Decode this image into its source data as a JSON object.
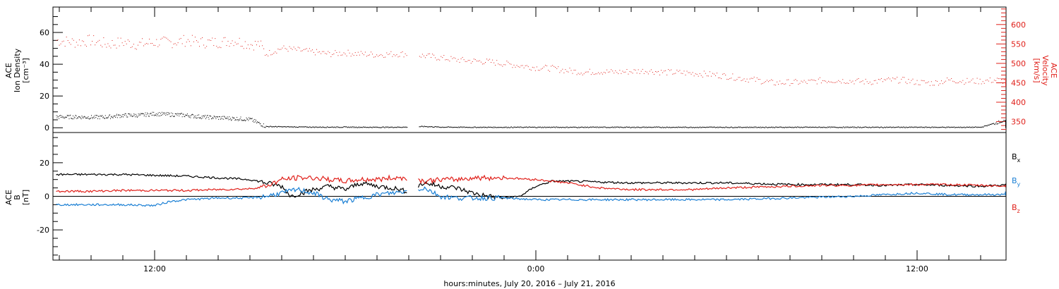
{
  "chart_data": [
    {
      "type": "scatter",
      "panel": "top",
      "left_axis": {
        "label": [
          "ACE",
          "Ion Density",
          "[cm⁻³]"
        ],
        "ylim": [
          -3,
          76
        ],
        "ticks": [
          0,
          20,
          40,
          60
        ],
        "color": "#000000"
      },
      "right_axis": {
        "label": [
          "ACE",
          "Velocity",
          "[km/s]"
        ],
        "ylim": [
          322,
          645
        ],
        "ticks": [
          350,
          400,
          450,
          500,
          550,
          600
        ],
        "color": "#e0201a"
      },
      "xlim": [
        -3.2,
        26.8
      ],
      "x_unit": "hours from July 20, 2016 00:00 UT (12:00 = July 20 noon)",
      "series": [
        {
          "color": "#e0201a",
          "axis": "right",
          "points": [
            [
              -3.1,
              560
            ],
            [
              -2.5,
              555
            ],
            [
              -2,
              560
            ],
            [
              -1.5,
              550
            ],
            [
              -1,
              555
            ],
            [
              -0.5,
              550
            ],
            [
              0,
              555
            ],
            [
              0.5,
              555
            ],
            [
              1,
              560
            ],
            [
              1.5,
              555
            ],
            [
              2,
              555
            ],
            [
              2.5,
              560
            ],
            [
              3,
              550
            ],
            [
              3.3,
              550
            ],
            [
              3.5,
              525
            ],
            [
              4,
              540
            ],
            [
              4.5,
              535
            ],
            [
              5,
              530
            ],
            [
              5.5,
              525
            ],
            [
              6,
              528
            ],
            [
              6.5,
              525
            ],
            [
              7,
              523
            ],
            [
              7.5,
              525
            ],
            [
              7.9,
              525
            ],
            [
              8.5,
              520
            ],
            [
              9,
              515
            ],
            [
              9.5,
              510
            ],
            [
              10,
              507
            ],
            [
              10.5,
              505
            ],
            [
              11,
              500
            ],
            [
              11.5,
              495
            ],
            [
              12,
              490
            ],
            [
              12.5,
              488
            ],
            [
              13,
              482
            ],
            [
              13.5,
              478
            ],
            [
              14,
              480
            ],
            [
              14.5,
              478
            ],
            [
              15,
              480
            ],
            [
              15.5,
              482
            ],
            [
              16,
              478
            ],
            [
              16.5,
              477
            ],
            [
              17,
              475
            ],
            [
              17.5,
              472
            ],
            [
              18,
              468
            ],
            [
              18.5,
              462
            ],
            [
              19,
              457
            ],
            [
              19.5,
              450
            ],
            [
              20,
              452
            ],
            [
              20.5,
              452
            ],
            [
              21,
              457
            ],
            [
              21.5,
              457
            ],
            [
              22,
              455
            ],
            [
              22.5,
              453
            ],
            [
              23,
              457
            ],
            [
              23.5,
              458
            ],
            [
              24,
              452
            ],
            [
              24.5,
              450
            ],
            [
              25,
              458
            ],
            [
              25.5,
              455
            ],
            [
              26,
              455
            ],
            [
              26.5,
              458
            ],
            [
              27,
              452
            ],
            [
              27.5,
              455
            ],
            [
              27.9,
              452
            ],
            [
              28.1,
              448
            ]
          ]
        },
        {
          "color": "#000000",
          "axis": "left",
          "points": [
            [
              -3.1,
              7
            ],
            [
              -2.5,
              7
            ],
            [
              -2,
              6.8
            ],
            [
              -1.5,
              7
            ],
            [
              -1,
              8
            ],
            [
              -0.5,
              8
            ],
            [
              0,
              9
            ],
            [
              0.5,
              8.5
            ],
            [
              1,
              8
            ],
            [
              1.5,
              7
            ],
            [
              2,
              6.5
            ],
            [
              2.5,
              6
            ],
            [
              3,
              5.5
            ],
            [
              3.5,
              1
            ],
            [
              4,
              0.8
            ],
            [
              5,
              0.6
            ],
            [
              6,
              0.6
            ],
            [
              7,
              0.5
            ],
            [
              7.9,
              0.6
            ],
            [
              8.5,
              1
            ],
            [
              9,
              0.6
            ],
            [
              10,
              0.5
            ],
            [
              12,
              0.5
            ],
            [
              14,
              0.5
            ],
            [
              16,
              0.5
            ],
            [
              18,
              0.5
            ],
            [
              20,
              0.5
            ],
            [
              22,
              0.5
            ],
            [
              24,
              0.5
            ],
            [
              25,
              0.5
            ],
            [
              26,
              0.5
            ],
            [
              26.6,
              4
            ],
            [
              27,
              4
            ],
            [
              27.5,
              3
            ],
            [
              28,
              0.6
            ],
            [
              28.1,
              0.5
            ]
          ]
        }
      ]
    },
    {
      "type": "line",
      "panel": "bottom",
      "left_axis": {
        "label": [
          "ACE",
          "B",
          "[nT]"
        ],
        "ylim": [
          -38,
          38
        ],
        "ticks": [
          -20,
          0,
          20
        ],
        "color": "#000000"
      },
      "xlim": [
        -3.2,
        26.8
      ],
      "series": [
        {
          "name": "Bx",
          "color": "#000000",
          "points": [
            [
              -3.1,
              13
            ],
            [
              -2,
              13
            ],
            [
              -1,
              13
            ],
            [
              0,
              12.5
            ],
            [
              1,
              12
            ],
            [
              2,
              11
            ],
            [
              3,
              10
            ],
            [
              3.5,
              8
            ],
            [
              4,
              6
            ],
            [
              4.3,
              0
            ],
            [
              4.6,
              2
            ],
            [
              5,
              4
            ],
            [
              5.5,
              6
            ],
            [
              6,
              4
            ],
            [
              6.5,
              8
            ],
            [
              7,
              6
            ],
            [
              7.5,
              5
            ],
            [
              7.9,
              3
            ],
            [
              8.5,
              8
            ],
            [
              9,
              6
            ],
            [
              9.5,
              5
            ],
            [
              10,
              2
            ],
            [
              10.5,
              0
            ],
            [
              11,
              -1
            ],
            [
              11.5,
              0
            ],
            [
              12,
              6
            ],
            [
              12.5,
              9
            ],
            [
              13,
              9
            ],
            [
              14,
              8.5
            ],
            [
              15,
              8
            ],
            [
              16,
              8
            ],
            [
              17,
              8
            ],
            [
              18,
              8
            ],
            [
              19,
              7.5
            ],
            [
              20,
              7
            ],
            [
              21,
              7
            ],
            [
              22,
              7
            ],
            [
              23,
              6.5
            ],
            [
              24,
              7
            ],
            [
              25,
              6.5
            ],
            [
              26,
              6
            ],
            [
              27,
              7
            ],
            [
              28,
              6
            ],
            [
              28.1,
              6
            ]
          ]
        },
        {
          "name": "By",
          "color": "#1a7fd4",
          "points": [
            [
              -3.1,
              -5
            ],
            [
              -2,
              -5
            ],
            [
              -1,
              -5
            ],
            [
              0,
              -5.5
            ],
            [
              0.5,
              -3
            ],
            [
              1,
              -2
            ],
            [
              2,
              -1
            ],
            [
              3,
              -1
            ],
            [
              3.5,
              0
            ],
            [
              4,
              2
            ],
            [
              4.5,
              4
            ],
            [
              5,
              2
            ],
            [
              5.5,
              -2
            ],
            [
              6,
              -3
            ],
            [
              6.5,
              -1
            ],
            [
              7,
              1
            ],
            [
              7.5,
              2
            ],
            [
              7.9,
              3
            ],
            [
              8.5,
              5
            ],
            [
              9,
              0
            ],
            [
              9.5,
              -1
            ],
            [
              10,
              -1
            ],
            [
              11,
              -1
            ],
            [
              12,
              -2
            ],
            [
              14,
              -2
            ],
            [
              16,
              -2
            ],
            [
              18,
              -2
            ],
            [
              20,
              -1
            ],
            [
              22,
              0
            ],
            [
              24,
              2
            ],
            [
              25,
              1
            ],
            [
              26,
              1
            ],
            [
              27,
              1
            ],
            [
              28,
              2
            ],
            [
              28.1,
              3
            ]
          ]
        },
        {
          "name": "Bz",
          "color": "#e0201a",
          "points": [
            [
              -3.1,
              3
            ],
            [
              -2,
              3
            ],
            [
              -1,
              3.5
            ],
            [
              0,
              3.5
            ],
            [
              1,
              3.5
            ],
            [
              2,
              4
            ],
            [
              3,
              4.5
            ],
            [
              3.5,
              6
            ],
            [
              4,
              10
            ],
            [
              4.5,
              11
            ],
            [
              5,
              11
            ],
            [
              5.5,
              10
            ],
            [
              6,
              9
            ],
            [
              6.5,
              10
            ],
            [
              7,
              10
            ],
            [
              7.5,
              11
            ],
            [
              7.9,
              11
            ],
            [
              8.5,
              9
            ],
            [
              9,
              10
            ],
            [
              9.5,
              10
            ],
            [
              10,
              11
            ],
            [
              11,
              11
            ],
            [
              12,
              10
            ],
            [
              13,
              8
            ],
            [
              14,
              5
            ],
            [
              15,
              4
            ],
            [
              16,
              4
            ],
            [
              17,
              4
            ],
            [
              18,
              5
            ],
            [
              19,
              5.5
            ],
            [
              20,
              6
            ],
            [
              21,
              6.5
            ],
            [
              22,
              6.5
            ],
            [
              23,
              7
            ],
            [
              24,
              7
            ],
            [
              25,
              7
            ],
            [
              26,
              6.5
            ],
            [
              27,
              6
            ],
            [
              28,
              6
            ],
            [
              28.1,
              7
            ]
          ]
        }
      ]
    }
  ],
  "x_axis": {
    "tick_labels": [
      "12:00",
      "0:00",
      "12:00"
    ],
    "title": "hours:minutes, July 20, 2016 – July 21, 2016"
  },
  "legend": [
    {
      "base": "B",
      "sub": "x",
      "color": "#000000"
    },
    {
      "base": "B",
      "sub": "y",
      "color": "#1a7fd4"
    },
    {
      "base": "B",
      "sub": "z",
      "color": "#e0201a"
    }
  ]
}
